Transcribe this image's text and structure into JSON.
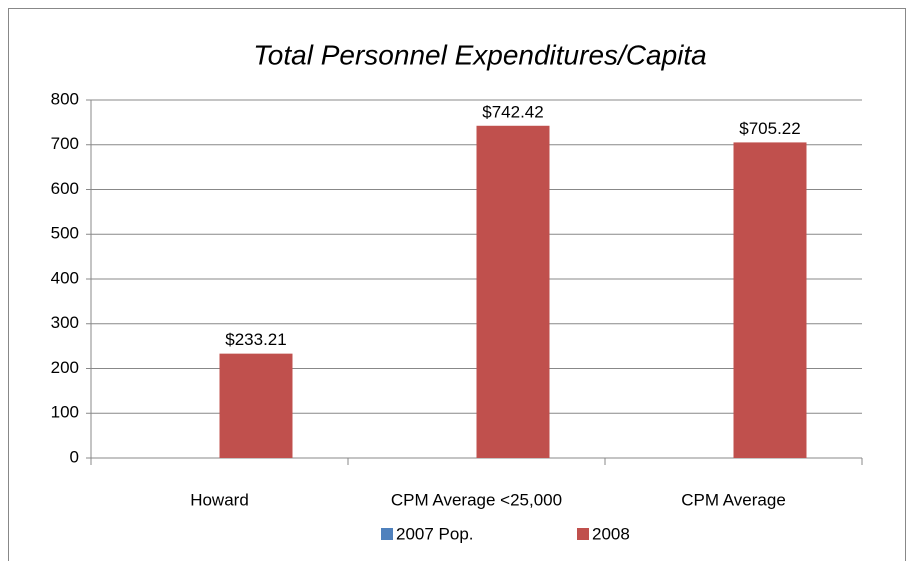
{
  "chart_data": {
    "type": "bar",
    "title": "Total Personnel Expenditures/Capita",
    "categories": [
      "Howard",
      "CPM Average <25,000",
      "CPM Average"
    ],
    "series": [
      {
        "name": "2007 Pop.",
        "color": "#4f81bd",
        "values": [
          null,
          null,
          null
        ]
      },
      {
        "name": "2008",
        "color": "#c0504d",
        "values": [
          233.21,
          742.42,
          705.22
        ],
        "value_labels": [
          "$233.21",
          "$742.42",
          "$705.22"
        ]
      }
    ],
    "ylim": [
      0,
      800
    ],
    "yticks": [
      0,
      100,
      200,
      300,
      400,
      500,
      600,
      700,
      800
    ],
    "grid": true,
    "legend": "bottom"
  }
}
